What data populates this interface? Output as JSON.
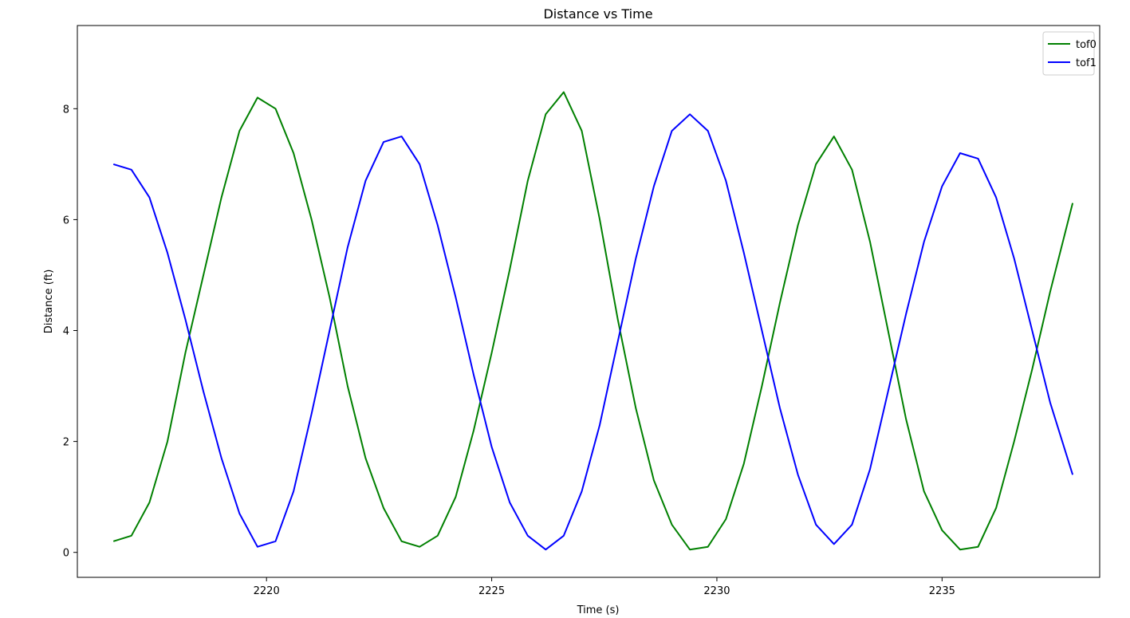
{
  "chart_data": {
    "type": "line",
    "title": "Distance vs Time",
    "xlabel": "Time (s)",
    "ylabel": "Distance (ft)",
    "xlim": [
      2215.8,
      2238.5
    ],
    "ylim": [
      -0.45,
      9.5
    ],
    "xticks": [
      2220,
      2225,
      2230,
      2235
    ],
    "yticks": [
      0,
      2,
      4,
      6,
      8
    ],
    "xtick_labels": [
      "2220",
      "2225",
      "2230",
      "2235"
    ],
    "ytick_labels": [
      "0",
      "2",
      "4",
      "6",
      "8"
    ],
    "grid": false,
    "legend_position": "top-right",
    "series": [
      {
        "name": "tof0",
        "color": "#008000",
        "x": [
          2216.6,
          2217.0,
          2217.4,
          2217.8,
          2218.2,
          2218.6,
          2219.0,
          2219.4,
          2219.8,
          2220.2,
          2220.6,
          2221.0,
          2221.4,
          2221.8,
          2222.2,
          2222.6,
          2223.0,
          2223.4,
          2223.8,
          2224.2,
          2224.6,
          2225.0,
          2225.4,
          2225.8,
          2226.2,
          2226.6,
          2227.0,
          2227.4,
          2227.8,
          2228.2,
          2228.6,
          2229.0,
          2229.4,
          2229.8,
          2230.2,
          2230.6,
          2231.0,
          2231.4,
          2231.8,
          2232.2,
          2232.6,
          2233.0,
          2233.4,
          2233.8,
          2234.2,
          2234.6,
          2235.0,
          2235.4,
          2235.8,
          2236.2,
          2236.6,
          2237.0,
          2237.4,
          2237.9
        ],
        "values": [
          0.2,
          0.3,
          0.9,
          2.0,
          3.6,
          5.0,
          6.4,
          7.6,
          8.2,
          8.0,
          7.2,
          6.0,
          4.6,
          3.0,
          1.7,
          0.8,
          0.2,
          0.1,
          0.3,
          1.0,
          2.2,
          3.6,
          5.1,
          6.7,
          7.9,
          8.3,
          7.6,
          6.0,
          4.2,
          2.6,
          1.3,
          0.5,
          0.05,
          0.1,
          0.6,
          1.6,
          3.0,
          4.5,
          5.9,
          7.0,
          7.5,
          6.9,
          5.6,
          4.0,
          2.4,
          1.1,
          0.4,
          0.05,
          0.1,
          0.8,
          2.0,
          3.3,
          4.7,
          6.3
        ]
      },
      {
        "name": "tof1",
        "color": "#0000ff",
        "x": [
          2216.6,
          2217.0,
          2217.4,
          2217.8,
          2218.2,
          2218.6,
          2219.0,
          2219.4,
          2219.8,
          2220.2,
          2220.6,
          2221.0,
          2221.4,
          2221.8,
          2222.2,
          2222.6,
          2223.0,
          2223.4,
          2223.8,
          2224.2,
          2224.6,
          2225.0,
          2225.4,
          2225.8,
          2226.2,
          2226.6,
          2227.0,
          2227.4,
          2227.8,
          2228.2,
          2228.6,
          2229.0,
          2229.4,
          2229.8,
          2230.2,
          2230.6,
          2231.0,
          2231.4,
          2231.8,
          2232.2,
          2232.6,
          2233.0,
          2233.4,
          2233.8,
          2234.2,
          2234.6,
          2235.0,
          2235.4,
          2235.8,
          2236.2,
          2236.6,
          2237.0,
          2237.4,
          2237.9
        ],
        "values": [
          7.0,
          6.9,
          6.4,
          5.4,
          4.2,
          2.9,
          1.7,
          0.7,
          0.1,
          0.2,
          1.1,
          2.5,
          4.0,
          5.5,
          6.7,
          7.4,
          7.5,
          7.0,
          5.9,
          4.6,
          3.2,
          1.9,
          0.9,
          0.3,
          0.05,
          0.3,
          1.1,
          2.3,
          3.8,
          5.3,
          6.6,
          7.6,
          7.9,
          7.6,
          6.7,
          5.4,
          4.0,
          2.6,
          1.4,
          0.5,
          0.15,
          0.5,
          1.5,
          2.9,
          4.3,
          5.6,
          6.6,
          7.2,
          7.1,
          6.4,
          5.3,
          4.0,
          2.7,
          1.4
        ]
      }
    ]
  }
}
